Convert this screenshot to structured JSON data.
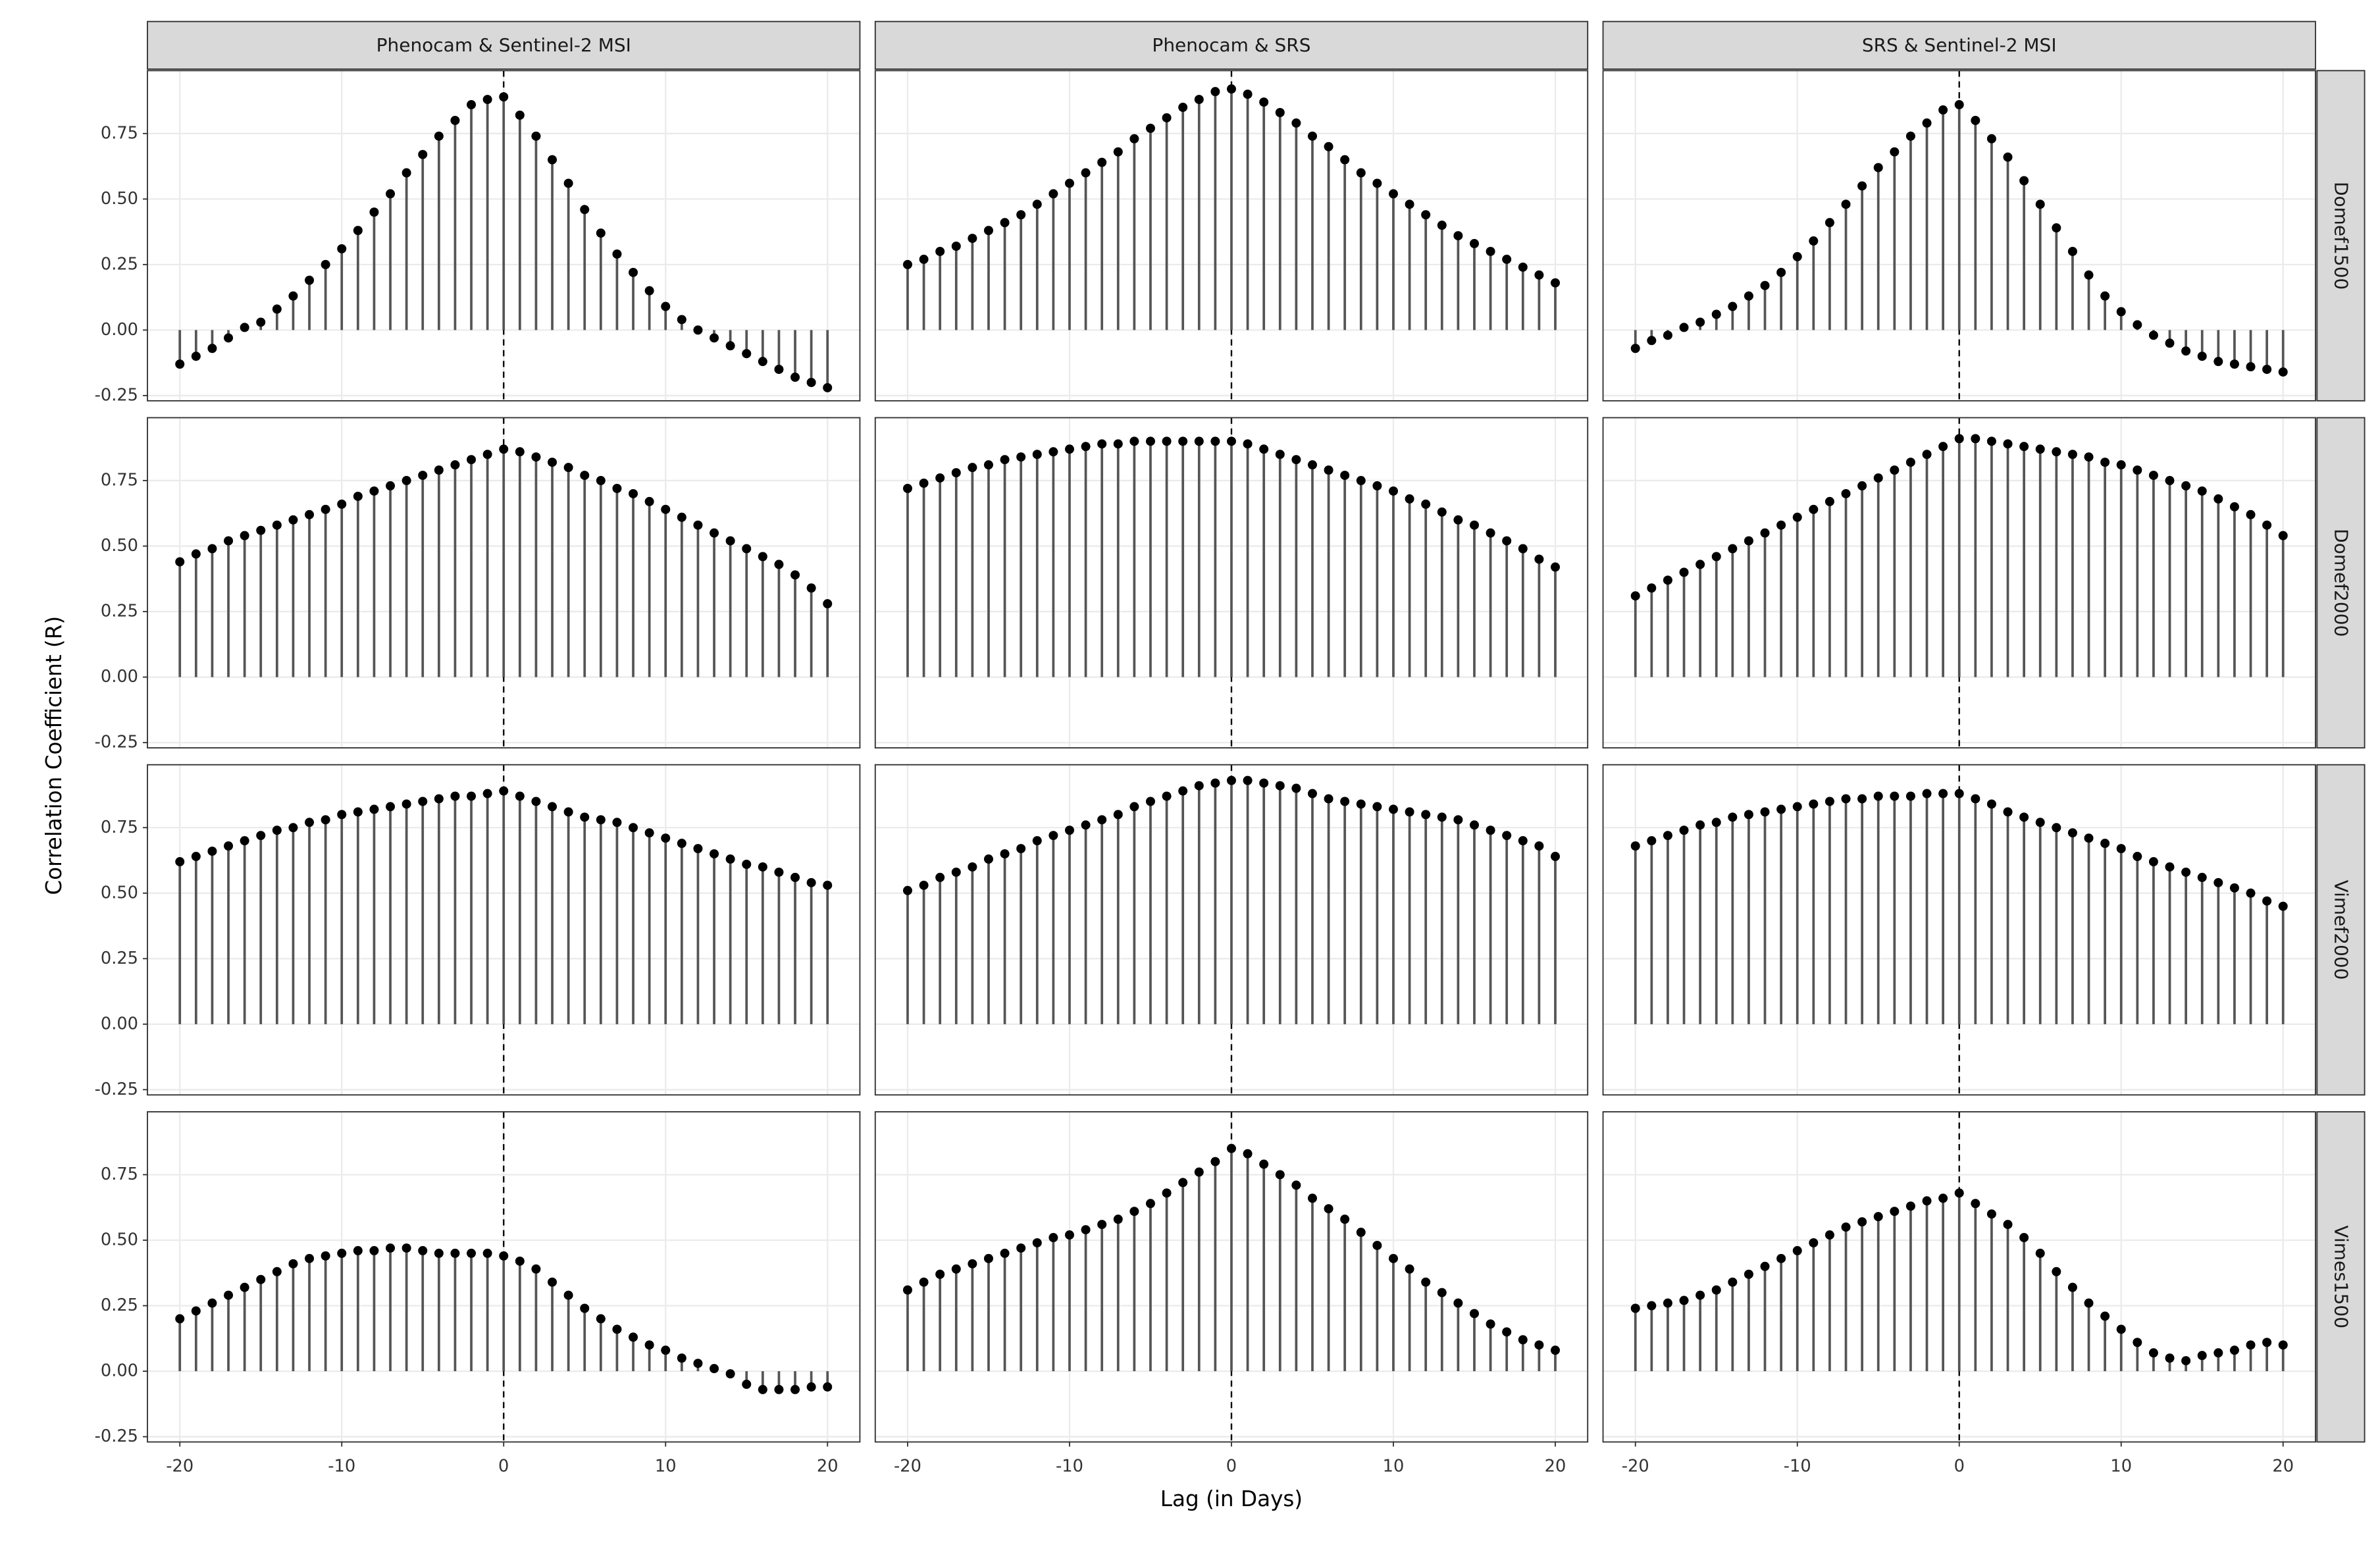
{
  "chart_data": {
    "type": "lollipop",
    "xlabel": "Lag (in Days)",
    "ylabel": "Correlation Coefficient (R)",
    "columns": [
      "Phenocam & Sentinel-2 MSI",
      "Phenocam & SRS",
      "SRS & Sentinel-2 MSI"
    ],
    "rows": [
      "Domef1500",
      "Domef2000",
      "Vimef2000",
      "Vimes1500"
    ],
    "x": [
      -20,
      -19,
      -18,
      -17,
      -16,
      -15,
      -14,
      -13,
      -12,
      -11,
      -10,
      -9,
      -8,
      -7,
      -6,
      -5,
      -4,
      -3,
      -2,
      -1,
      0,
      1,
      2,
      3,
      4,
      5,
      6,
      7,
      8,
      9,
      10,
      11,
      12,
      13,
      14,
      15,
      16,
      17,
      18,
      19,
      20
    ],
    "xlim": [
      -22,
      22
    ],
    "ylim": [
      -0.27,
      0.99
    ],
    "xticks": [
      -20,
      -10,
      0,
      10,
      20
    ],
    "yticks": [
      -0.25,
      {
        "value": 0,
        "label": "0.00"
      },
      0.25,
      {
        "value": 0.5,
        "label": "0.50"
      },
      0.75
    ],
    "vline": 0,
    "grid": true,
    "color": "#555555",
    "point_color": "#000000",
    "panels": [
      [
        {
          "values": [
            -0.13,
            -0.1,
            -0.07,
            -0.03,
            0.01,
            0.03,
            0.08,
            0.13,
            0.19,
            0.25,
            0.31,
            0.38,
            0.45,
            0.52,
            0.6,
            0.67,
            0.74,
            0.8,
            0.86,
            0.88,
            0.89,
            0.82,
            0.74,
            0.65,
            0.56,
            0.46,
            0.37,
            0.29,
            0.22,
            0.15,
            0.09,
            0.04,
            0.0,
            -0.03,
            -0.06,
            -0.09,
            -0.12,
            -0.15,
            -0.18,
            -0.2,
            -0.22
          ]
        },
        {
          "values": [
            0.25,
            0.27,
            0.3,
            0.32,
            0.35,
            0.38,
            0.41,
            0.44,
            0.48,
            0.52,
            0.56,
            0.6,
            0.64,
            0.68,
            0.73,
            0.77,
            0.81,
            0.85,
            0.88,
            0.91,
            0.92,
            0.9,
            0.87,
            0.83,
            0.79,
            0.74,
            0.7,
            0.65,
            0.6,
            0.56,
            0.52,
            0.48,
            0.44,
            0.4,
            0.36,
            0.33,
            0.3,
            0.27,
            0.24,
            0.21,
            0.18
          ]
        },
        {
          "values": [
            -0.07,
            -0.04,
            -0.02,
            0.01,
            0.03,
            0.06,
            0.09,
            0.13,
            0.17,
            0.22,
            0.28,
            0.34,
            0.41,
            0.48,
            0.55,
            0.62,
            0.68,
            0.74,
            0.79,
            0.84,
            0.86,
            0.8,
            0.73,
            0.66,
            0.57,
            0.48,
            0.39,
            0.3,
            0.21,
            0.13,
            0.07,
            0.02,
            -0.02,
            -0.05,
            -0.08,
            -0.1,
            -0.12,
            -0.13,
            -0.14,
            -0.15,
            -0.16
          ]
        }
      ],
      [
        {
          "values": [
            0.44,
            0.47,
            0.49,
            0.52,
            0.54,
            0.56,
            0.58,
            0.6,
            0.62,
            0.64,
            0.66,
            0.69,
            0.71,
            0.73,
            0.75,
            0.77,
            0.79,
            0.81,
            0.83,
            0.85,
            0.87,
            0.86,
            0.84,
            0.82,
            0.8,
            0.77,
            0.75,
            0.72,
            0.7,
            0.67,
            0.64,
            0.61,
            0.58,
            0.55,
            0.52,
            0.49,
            0.46,
            0.43,
            0.39,
            0.34,
            0.28
          ]
        },
        {
          "values": [
            0.72,
            0.74,
            0.76,
            0.78,
            0.8,
            0.81,
            0.83,
            0.84,
            0.85,
            0.86,
            0.87,
            0.88,
            0.89,
            0.89,
            0.9,
            0.9,
            0.9,
            0.9,
            0.9,
            0.9,
            0.9,
            0.89,
            0.87,
            0.85,
            0.83,
            0.81,
            0.79,
            0.77,
            0.75,
            0.73,
            0.71,
            0.68,
            0.66,
            0.63,
            0.6,
            0.58,
            0.55,
            0.52,
            0.49,
            0.45,
            0.42
          ]
        },
        {
          "values": [
            0.31,
            0.34,
            0.37,
            0.4,
            0.43,
            0.46,
            0.49,
            0.52,
            0.55,
            0.58,
            0.61,
            0.64,
            0.67,
            0.7,
            0.73,
            0.76,
            0.79,
            0.82,
            0.85,
            0.88,
            0.91,
            0.91,
            0.9,
            0.89,
            0.88,
            0.87,
            0.86,
            0.85,
            0.84,
            0.82,
            0.81,
            0.79,
            0.77,
            0.75,
            0.73,
            0.71,
            0.68,
            0.65,
            0.62,
            0.58,
            0.54
          ]
        }
      ],
      [
        {
          "values": [
            0.62,
            0.64,
            0.66,
            0.68,
            0.7,
            0.72,
            0.74,
            0.75,
            0.77,
            0.78,
            0.8,
            0.81,
            0.82,
            0.83,
            0.84,
            0.85,
            0.86,
            0.87,
            0.87,
            0.88,
            0.89,
            0.87,
            0.85,
            0.83,
            0.81,
            0.79,
            0.78,
            0.77,
            0.75,
            0.73,
            0.71,
            0.69,
            0.67,
            0.65,
            0.63,
            0.61,
            0.6,
            0.58,
            0.56,
            0.54,
            0.53
          ]
        },
        {
          "values": [
            0.51,
            0.53,
            0.56,
            0.58,
            0.6,
            0.63,
            0.65,
            0.67,
            0.7,
            0.72,
            0.74,
            0.76,
            0.78,
            0.8,
            0.83,
            0.85,
            0.87,
            0.89,
            0.91,
            0.92,
            0.93,
            0.93,
            0.92,
            0.91,
            0.9,
            0.88,
            0.86,
            0.85,
            0.84,
            0.83,
            0.82,
            0.81,
            0.8,
            0.79,
            0.78,
            0.76,
            0.74,
            0.72,
            0.7,
            0.68,
            0.64
          ]
        },
        {
          "values": [
            0.68,
            0.7,
            0.72,
            0.74,
            0.76,
            0.77,
            0.79,
            0.8,
            0.81,
            0.82,
            0.83,
            0.84,
            0.85,
            0.86,
            0.86,
            0.87,
            0.87,
            0.87,
            0.88,
            0.88,
            0.88,
            0.86,
            0.84,
            0.81,
            0.79,
            0.77,
            0.75,
            0.73,
            0.71,
            0.69,
            0.67,
            0.64,
            0.62,
            0.6,
            0.58,
            0.56,
            0.54,
            0.52,
            0.5,
            0.47,
            0.45
          ]
        }
      ],
      [
        {
          "values": [
            0.2,
            0.23,
            0.26,
            0.29,
            0.32,
            0.35,
            0.38,
            0.41,
            0.43,
            0.44,
            0.45,
            0.46,
            0.46,
            0.47,
            0.47,
            0.46,
            0.45,
            0.45,
            0.45,
            0.45,
            0.44,
            0.42,
            0.39,
            0.34,
            0.29,
            0.24,
            0.2,
            0.16,
            0.13,
            0.1,
            0.08,
            0.05,
            0.03,
            0.01,
            -0.01,
            -0.05,
            -0.07,
            -0.07,
            -0.07,
            -0.06,
            -0.06
          ]
        },
        {
          "values": [
            0.31,
            0.34,
            0.37,
            0.39,
            0.41,
            0.43,
            0.45,
            0.47,
            0.49,
            0.51,
            0.52,
            0.54,
            0.56,
            0.58,
            0.61,
            0.64,
            0.68,
            0.72,
            0.76,
            0.8,
            0.85,
            0.83,
            0.79,
            0.75,
            0.71,
            0.66,
            0.62,
            0.58,
            0.53,
            0.48,
            0.43,
            0.39,
            0.34,
            0.3,
            0.26,
            0.22,
            0.18,
            0.15,
            0.12,
            0.1,
            0.08
          ]
        },
        {
          "values": [
            0.24,
            0.25,
            0.26,
            0.27,
            0.29,
            0.31,
            0.34,
            0.37,
            0.4,
            0.43,
            0.46,
            0.49,
            0.52,
            0.55,
            0.57,
            0.59,
            0.61,
            0.63,
            0.65,
            0.66,
            0.68,
            0.64,
            0.6,
            0.56,
            0.51,
            0.45,
            0.38,
            0.32,
            0.26,
            0.21,
            0.16,
            0.11,
            0.07,
            0.05,
            0.04,
            0.06,
            0.07,
            0.08,
            0.1,
            0.11,
            0.1
          ]
        }
      ]
    ]
  }
}
